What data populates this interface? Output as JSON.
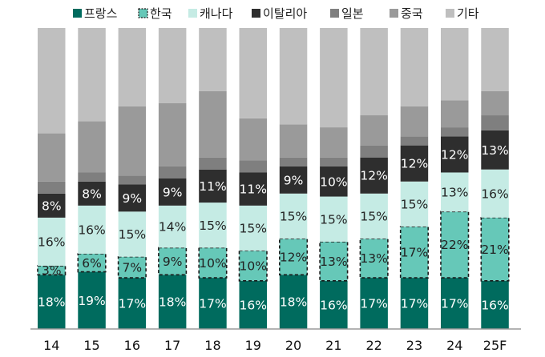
{
  "chart_data": {
    "type": "bar",
    "stacked": true,
    "percent_stacked": true,
    "categories": [
      "14",
      "15",
      "16",
      "17",
      "18",
      "19",
      "20",
      "21",
      "22",
      "23",
      "24",
      "25F"
    ],
    "series": [
      {
        "name": "프랑스",
        "color": "#006b5e",
        "label_color": "#ffffff",
        "values": [
          18,
          19,
          17,
          18,
          17,
          16,
          18,
          16,
          17,
          17,
          17,
          16
        ]
      },
      {
        "name": "한국",
        "color": "#66c8b8",
        "label_color": "#222222",
        "dashed_border": true,
        "values": [
          3,
          6,
          7,
          9,
          10,
          10,
          12,
          13,
          13,
          17,
          22,
          21
        ]
      },
      {
        "name": "캐나다",
        "color": "#c5ebe4",
        "label_color": "#222222",
        "values": [
          16,
          16,
          15,
          14,
          15,
          15,
          15,
          15,
          15,
          15,
          13,
          16
        ]
      },
      {
        "name": "이탈리아",
        "color": "#2e2e2e",
        "label_color": "#ffffff",
        "values": [
          8,
          8,
          9,
          9,
          11,
          11,
          9,
          10,
          12,
          12,
          12,
          13
        ]
      },
      {
        "name": "일본",
        "color": "#7f7f7f",
        "label_color": "#ffffff",
        "values": [
          4,
          3,
          3,
          4,
          4,
          4,
          3,
          3,
          4,
          3,
          3,
          5
        ]
      },
      {
        "name": "중국",
        "color": "#9a9a9a",
        "label_color": "#ffffff",
        "values": [
          16,
          17,
          23,
          21,
          22,
          14,
          11,
          10,
          10,
          10,
          9,
          8
        ]
      },
      {
        "name": "기타",
        "color": "#bfbfbf",
        "label_color": "#222222",
        "values": [
          35,
          31,
          26,
          25,
          21,
          30,
          32,
          33,
          29,
          26,
          24,
          21
        ]
      }
    ],
    "labeled_series": [
      "프랑스",
      "한국",
      "캐나다",
      "이탈리아"
    ],
    "label_format": "{v}%",
    "ylim": [
      0,
      100
    ],
    "title": "",
    "xlabel": "",
    "ylabel": "",
    "legend_position": "top",
    "grid": false
  }
}
